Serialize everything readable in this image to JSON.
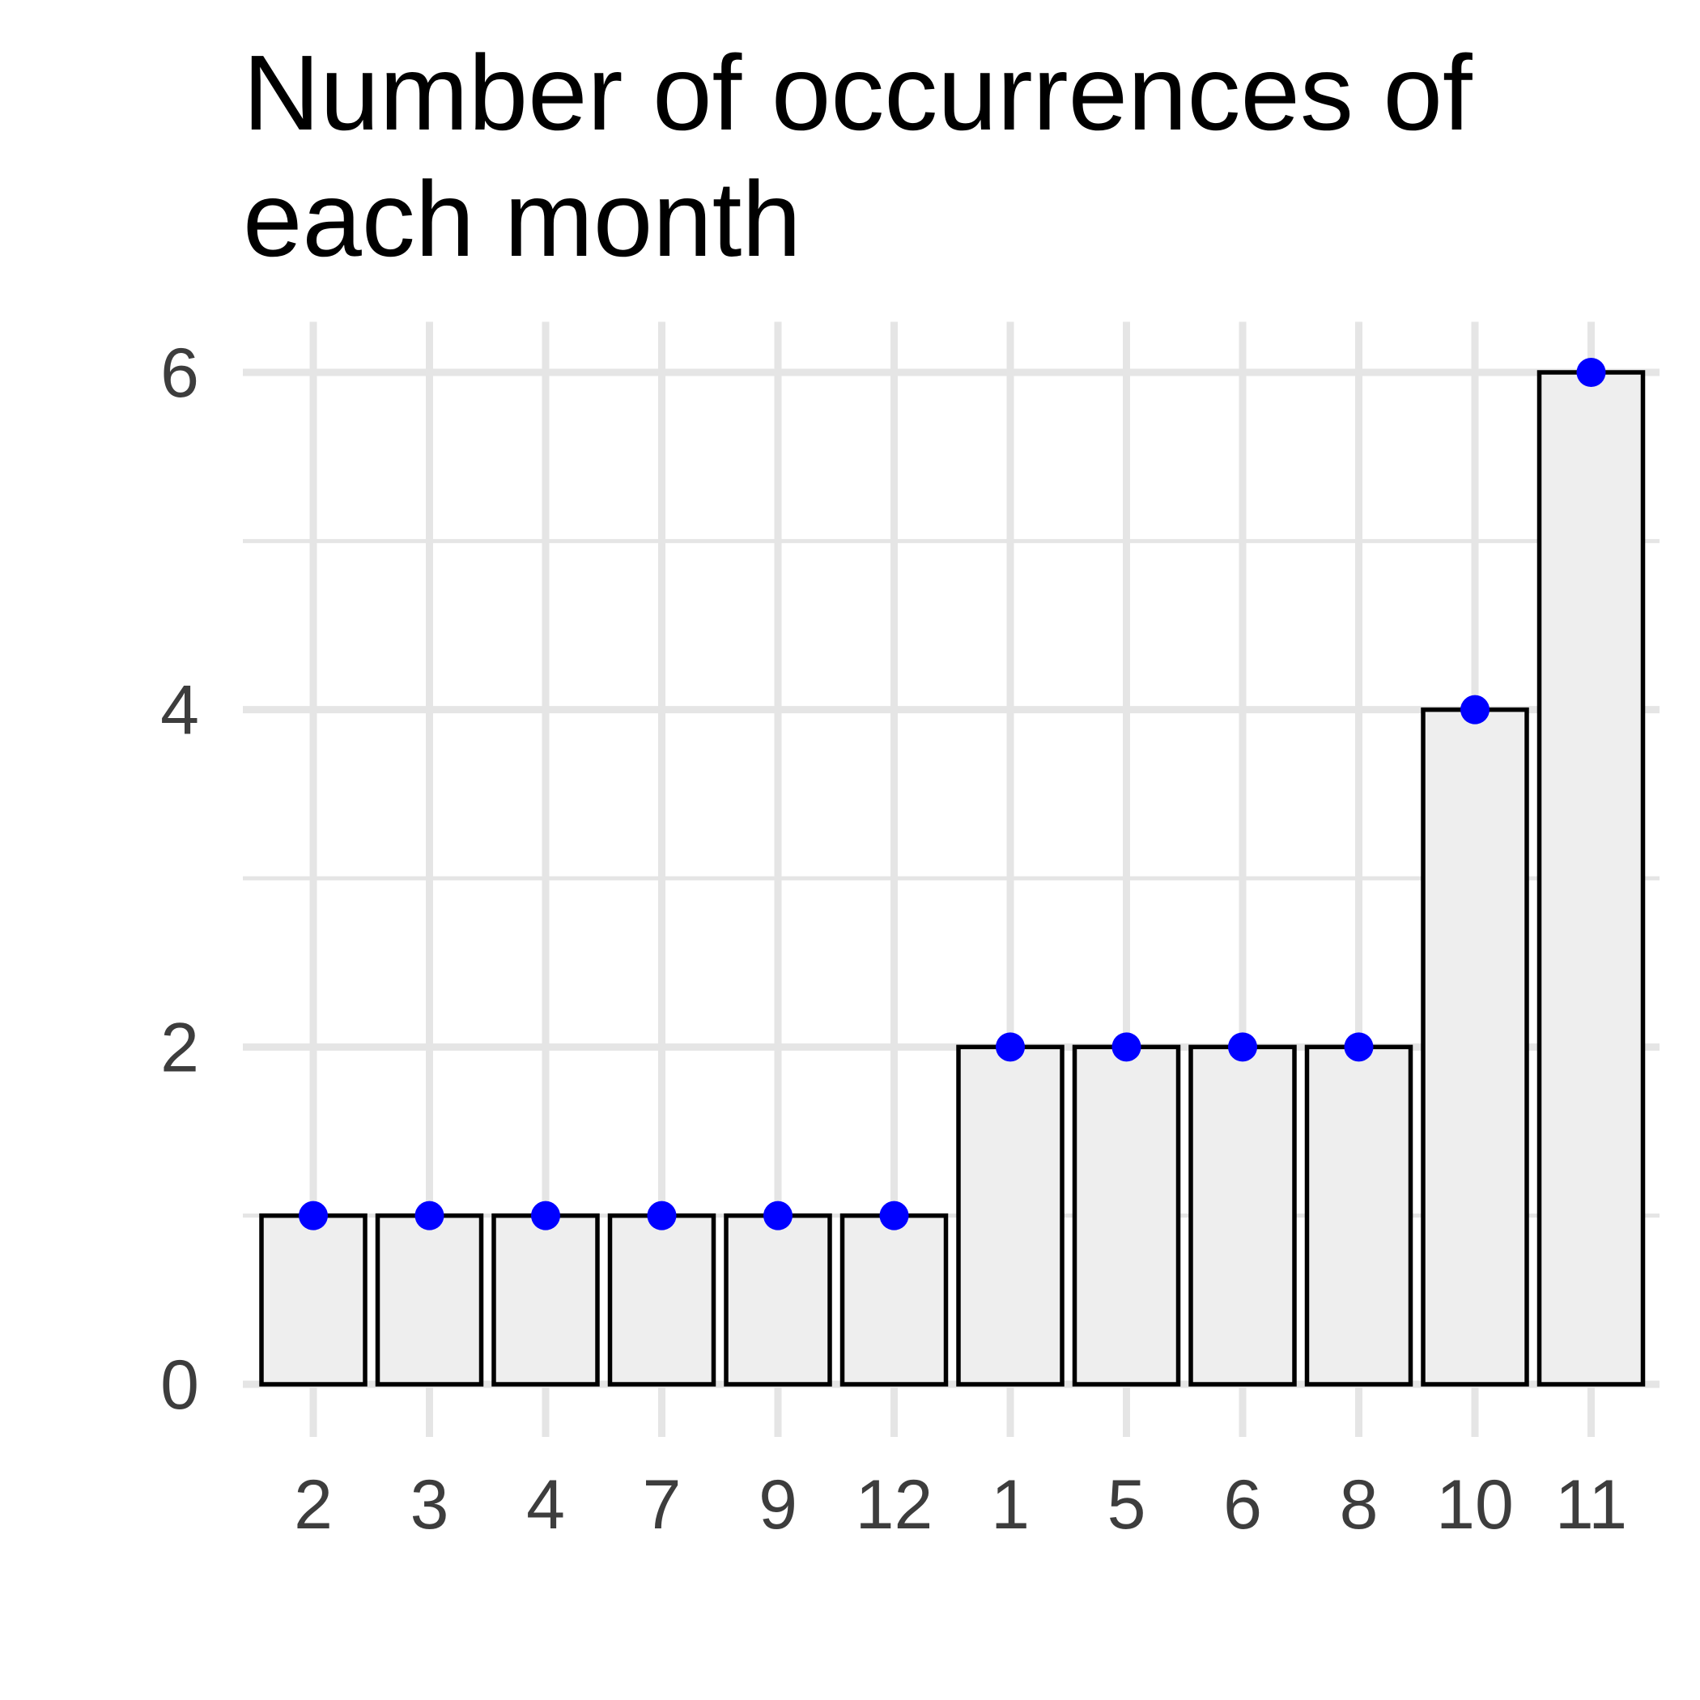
{
  "chart_data": {
    "type": "bar",
    "title": "Number of occurrences of each month",
    "title_lines": [
      "Number of occurrences of",
      "each month"
    ],
    "xlabel": "",
    "ylabel": "",
    "categories": [
      "2",
      "3",
      "4",
      "7",
      "9",
      "12",
      "1",
      "5",
      "6",
      "8",
      "10",
      "11"
    ],
    "values": [
      1,
      1,
      1,
      1,
      1,
      1,
      2,
      2,
      2,
      2,
      4,
      6
    ],
    "ylim": [
      0,
      6.3
    ],
    "yticks": [
      0,
      2,
      4,
      6
    ],
    "y_minor_ticks": [
      1,
      3,
      5
    ],
    "grid": true,
    "legend": "none",
    "bar_fill": "#eeeeee",
    "bar_stroke": "#000000",
    "point_color": "#0000ff",
    "grid_color": "#e5e5e5"
  }
}
